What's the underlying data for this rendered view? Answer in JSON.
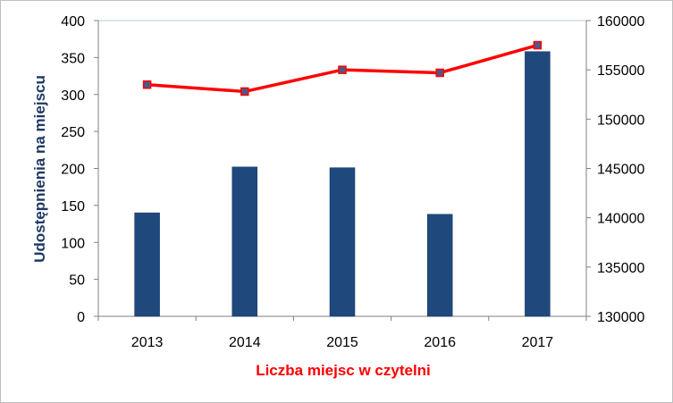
{
  "chart_data": {
    "type": "bar",
    "categories": [
      "2013",
      "2014",
      "2015",
      "2016",
      "2017"
    ],
    "series": [
      {
        "axis": "left",
        "type": "bar",
        "color": "#1f497d",
        "values": [
          140,
          202,
          201,
          138,
          358
        ]
      },
      {
        "axis": "right",
        "type": "line",
        "color": "#ff0000",
        "marker_color": "#4a5a8a",
        "values": [
          153500,
          152800,
          155000,
          154700,
          157500
        ]
      }
    ],
    "title": "",
    "xlabel": "Liczba miejsc w czytelni",
    "ylabel": "Udostępnienia na miejscu",
    "ylim": [
      0,
      400
    ],
    "y2lim": [
      130000,
      160000
    ],
    "yticks": [
      "0",
      "50",
      "100",
      "150",
      "200",
      "250",
      "300",
      "350",
      "400"
    ],
    "y2ticks": [
      "130000",
      "135000",
      "140000",
      "145000",
      "150000",
      "155000",
      "160000"
    ],
    "grid": true,
    "legend": "none"
  }
}
